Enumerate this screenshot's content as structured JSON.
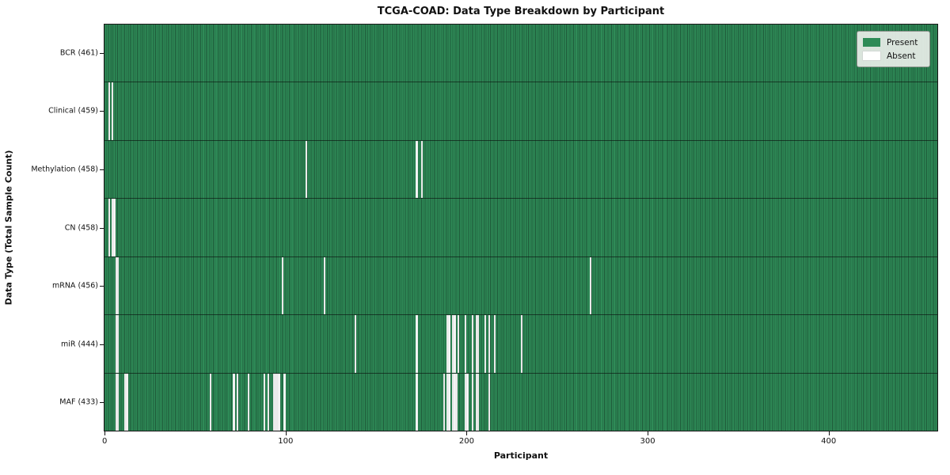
{
  "title": "TCGA-COAD: Data Type Breakdown by Participant",
  "xlabel": "Participant",
  "ylabel": "Data Type (Total Sample Count)",
  "colors": {
    "present": "#2e8b57",
    "absent": "#ffffff",
    "legend_background": "#e9eee9",
    "axis": "#111111"
  },
  "legend": {
    "present_label": "Present",
    "absent_label": "Absent"
  },
  "chart_data": {
    "type": "heatmap",
    "title": "TCGA-COAD: Data Type Breakdown by Participant",
    "xlabel": "Participant",
    "ylabel": "Data Type (Total Sample Count)",
    "n_participants": 461,
    "x_ticks": [
      0,
      100,
      200,
      300,
      400
    ],
    "legend_entries": [
      {
        "label": "Present",
        "color": "#2e8b57"
      },
      {
        "label": "Absent",
        "color": "#ffffff"
      }
    ],
    "rows": [
      {
        "label": "BCR (461)",
        "data_type": "BCR",
        "total": 461,
        "absent_participants": []
      },
      {
        "label": "Clinical (459)",
        "data_type": "Clinical",
        "total": 459,
        "absent_participants": [
          2,
          4
        ]
      },
      {
        "label": "Methylation (458)",
        "data_type": "Methylation",
        "total": 458,
        "absent_participants": [
          111,
          172,
          175
        ]
      },
      {
        "label": "CN (458)",
        "data_type": "CN",
        "total": 458,
        "absent_participants": [
          2,
          4,
          5
        ]
      },
      {
        "label": "mRNA (456)",
        "data_type": "mRNA",
        "total": 456,
        "absent_participants": [
          6,
          7,
          98,
          121,
          268
        ]
      },
      {
        "label": "miR (444)",
        "data_type": "miR",
        "total": 444,
        "absent_participants": [
          6,
          7,
          138,
          172,
          189,
          190,
          192,
          193,
          195,
          199,
          203,
          205,
          206,
          210,
          212,
          215,
          230
        ]
      },
      {
        "label": "MAF (433)",
        "data_type": "MAF",
        "total": 433,
        "absent_participants": [
          6,
          7,
          11,
          12,
          58,
          71,
          73,
          79,
          88,
          90,
          93,
          94,
          95,
          96,
          99,
          172,
          187,
          189,
          190,
          192,
          193,
          194,
          199,
          200,
          203,
          205,
          206,
          212
        ]
      }
    ]
  }
}
